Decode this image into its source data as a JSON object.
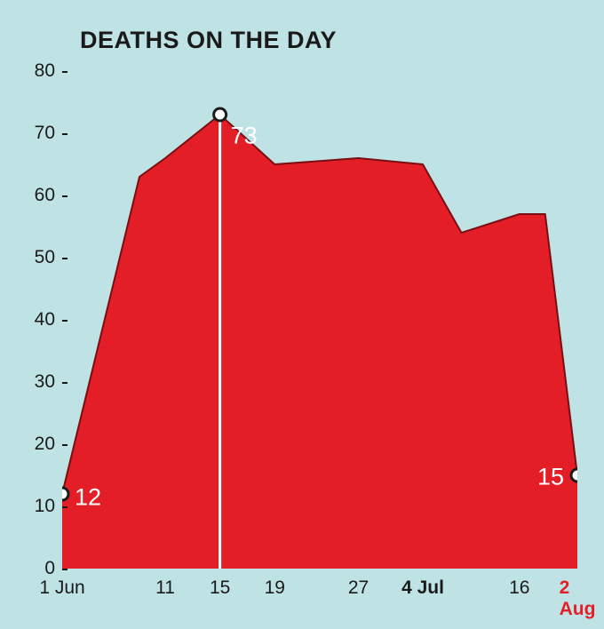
{
  "chart": {
    "type": "area",
    "title": "DEATHS ON THE DAY",
    "title_fontsize": 27,
    "title_color": "#1a1a1a",
    "background_color": "#bfe3e5",
    "plot_background_color": "#bfe3e5",
    "area_fill_color": "#e41e26",
    "area_stroke_color": "#7a0e12",
    "area_stroke_width": 2,
    "marker_fill": "#ffffff",
    "marker_stroke": "#1a1a1a",
    "marker_radius": 7,
    "value_label_color": "#ffffff",
    "value_label_fontsize": 27,
    "vline_color": "#ffffff",
    "y_axis": {
      "min": 0,
      "max": 80,
      "tick_step": 10,
      "tick_labels": [
        "0",
        "10",
        "20",
        "30",
        "40",
        "50",
        "60",
        "70",
        "80"
      ],
      "tick_fontsize": 21,
      "tick_color": "#1a1a1a",
      "tick_mark_color": "#1a1a1a"
    },
    "x_axis": {
      "tick_labels": [
        {
          "text": "1 Jun",
          "x": 0,
          "bold": false,
          "color": "#1a1a1a"
        },
        {
          "text": "11",
          "x": 1.6,
          "bold": false,
          "color": "#1a1a1a"
        },
        {
          "text": "15",
          "x": 2.45,
          "bold": false,
          "color": "#1a1a1a"
        },
        {
          "text": "19",
          "x": 3.3,
          "bold": false,
          "color": "#1a1a1a"
        },
        {
          "text": "27",
          "x": 4.6,
          "bold": false,
          "color": "#1a1a1a"
        },
        {
          "text": "4 Jul",
          "x": 5.6,
          "bold": true,
          "color": "#1a1a1a"
        },
        {
          "text": "16",
          "x": 7.1,
          "bold": false,
          "color": "#1a1a1a"
        },
        {
          "text": "2 Aug",
          "x": 8,
          "bold": true,
          "color": "#e41e26"
        }
      ],
      "tick_fontsize": 21,
      "x_min": 0,
      "x_max": 8
    },
    "data_points": [
      {
        "x": 0,
        "y": 12
      },
      {
        "x": 1.2,
        "y": 63
      },
      {
        "x": 1.6,
        "y": 66
      },
      {
        "x": 2.45,
        "y": 73
      },
      {
        "x": 3.3,
        "y": 65
      },
      {
        "x": 4.6,
        "y": 66
      },
      {
        "x": 5.6,
        "y": 65
      },
      {
        "x": 6.2,
        "y": 54
      },
      {
        "x": 7.1,
        "y": 57
      },
      {
        "x": 7.5,
        "y": 57
      },
      {
        "x": 8,
        "y": 15
      }
    ],
    "markers": [
      {
        "x": 0,
        "y": 12,
        "label": "12",
        "label_side": "right",
        "vline": false
      },
      {
        "x": 2.45,
        "y": 73,
        "label": "73",
        "label_side": "bottom",
        "vline": true
      },
      {
        "x": 8,
        "y": 15,
        "label": "15",
        "label_side": "left",
        "vline": false
      }
    ]
  }
}
